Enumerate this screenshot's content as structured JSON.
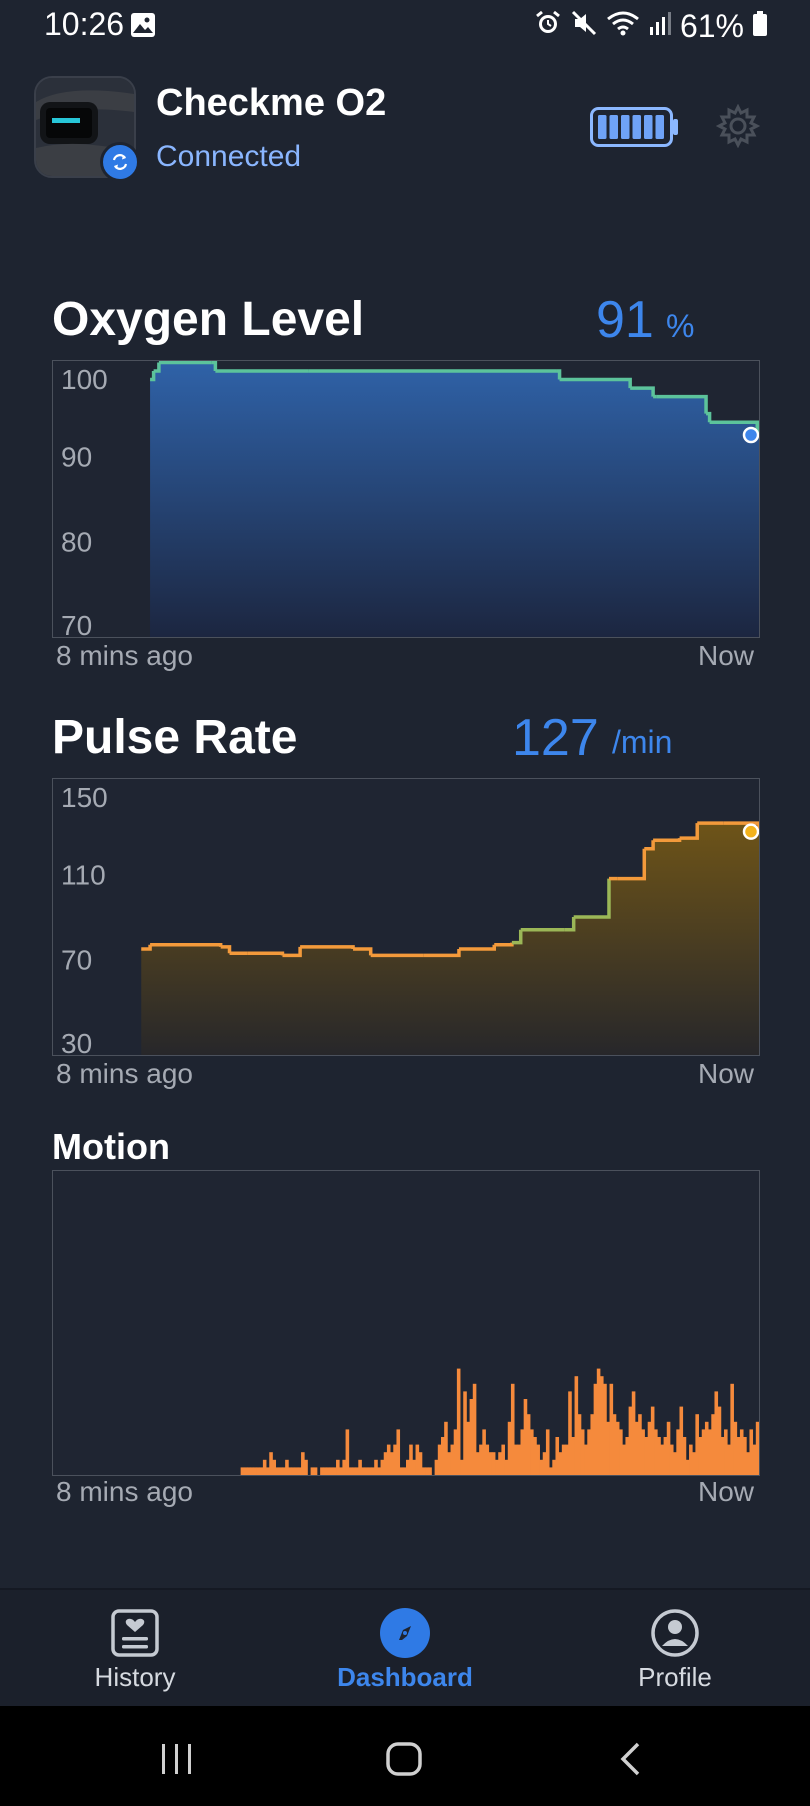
{
  "status_bar": {
    "time": "10:26",
    "battery_percent": "61%"
  },
  "device": {
    "name": "Checkme O2",
    "connection_status": "Connected",
    "battery_level": 1.0,
    "icon": "watch-device-thumbnail"
  },
  "oxygen": {
    "title": "Oxygen Level",
    "value": "91",
    "unit": "%",
    "start_label": "8 mins ago",
    "end_label": "Now"
  },
  "pulse": {
    "title": "Pulse Rate",
    "value": "127",
    "unit": "/min",
    "start_label": "8 mins ago",
    "end_label": "Now"
  },
  "motion": {
    "title": "Motion",
    "start_label": "8 mins ago",
    "end_label": "Now"
  },
  "nav": {
    "history_label": "History",
    "dashboard_label": "Dashboard",
    "profile_label": "Profile",
    "active": "Dashboard"
  },
  "colors": {
    "background": "#1e2430",
    "accent": "#3d86ec",
    "oxygen_line": "#5cc39b",
    "pulse_line": "#f39a3b",
    "motion_bar": "#f58a3c"
  },
  "chart_data": [
    {
      "type": "area",
      "ylim": [
        70,
        100
      ],
      "yticks": [
        100,
        90,
        80,
        70
      ],
      "x_range_minutes": [
        -8,
        0
      ],
      "xtick_labels": [
        "8 mins ago",
        "Now"
      ],
      "series": [
        {
          "x": [
            -6.9,
            -6.86,
            -6.8,
            -6.2,
            -6.16,
            -5.1,
            -2.3,
            -2.26,
            -1.46,
            -1.2,
            -1.16,
            -0.6,
            -0.56,
            -0.02,
            0.0
          ],
          "y": [
            99.0,
            100.0,
            101.0,
            101.0,
            100.0,
            100.0,
            100.0,
            99.0,
            98.0,
            97.0,
            97.0,
            95.0,
            94.0,
            92.5,
            92.5
          ]
        }
      ]
    },
    {
      "type": "area",
      "ylim": [
        30,
        150
      ],
      "yticks": [
        150,
        110,
        70,
        30
      ],
      "x_range_minutes": [
        -8,
        0
      ],
      "xtick_labels": [
        "8 mins ago",
        "Now"
      ],
      "series": [
        {
          "x": [
            -7.0,
            -6.9,
            -6.1,
            -6.0,
            -5.8,
            -5.4,
            -5.2,
            -4.6,
            -4.4,
            -3.8,
            -3.4,
            -3.0,
            -2.8,
            -2.7,
            -2.2,
            -2.1,
            -1.7,
            -1.6,
            -1.3,
            -1.2,
            -0.9,
            -0.7,
            -0.4,
            0.0
          ],
          "y": [
            75.0,
            77.0,
            76.0,
            73.0,
            73.0,
            72.0,
            76.0,
            75.0,
            72.0,
            72.0,
            75.0,
            77.0,
            78.0,
            84.0,
            84.0,
            90.0,
            108.0,
            108.0,
            122.0,
            126.0,
            127.0,
            134.0,
            134.0,
            130.0
          ]
        }
      ]
    },
    {
      "type": "bar",
      "x_range_minutes": [
        -8,
        0
      ],
      "xtick_labels": [
        "8 mins ago",
        "Now"
      ],
      "values": [
        0,
        0,
        0,
        0,
        0,
        0,
        0,
        0,
        0,
        0,
        0,
        0,
        0,
        0,
        0,
        0,
        0,
        0,
        0,
        0,
        0,
        0,
        0,
        0,
        0,
        0,
        0,
        0,
        0,
        0,
        0,
        0,
        0,
        0,
        0,
        0,
        0,
        0,
        0,
        0,
        0,
        0,
        0,
        0,
        0,
        0,
        0,
        0,
        0,
        0,
        0,
        0,
        0,
        0,
        0,
        0,
        0,
        0,
        0,
        1,
        1,
        1,
        1,
        1,
        1,
        1,
        2,
        1,
        3,
        2,
        1,
        1,
        1,
        2,
        1,
        1,
        1,
        1,
        3,
        2,
        0,
        1,
        1,
        0,
        1,
        1,
        1,
        1,
        1,
        2,
        1,
        2,
        6,
        1,
        1,
        1,
        2,
        1,
        1,
        1,
        1,
        2,
        1,
        2,
        3,
        4,
        3,
        4,
        6,
        1,
        1,
        2,
        4,
        2,
        4,
        3,
        1,
        1,
        1,
        0,
        2,
        4,
        5,
        7,
        3,
        4,
        6,
        14,
        2,
        11,
        7,
        10,
        12,
        3,
        4,
        6,
        4,
        3,
        3,
        2,
        3,
        4,
        2,
        7,
        12,
        4,
        4,
        6,
        10,
        8,
        6,
        5,
        4,
        2,
        3,
        6,
        1,
        2,
        5,
        3,
        4,
        4,
        11,
        5,
        13,
        8,
        6,
        4,
        6,
        8,
        12,
        14,
        13,
        12,
        7,
        12,
        8,
        7,
        6,
        4,
        5,
        9,
        11,
        7,
        8,
        6,
        5,
        7,
        9,
        6,
        5,
        4,
        5,
        7,
        4,
        3,
        6,
        9,
        5,
        2,
        4,
        3,
        8,
        5,
        6,
        7,
        6,
        8,
        11,
        9,
        5,
        6,
        4,
        12,
        7,
        5,
        6,
        5,
        3,
        6,
        4,
        7
      ]
    }
  ]
}
